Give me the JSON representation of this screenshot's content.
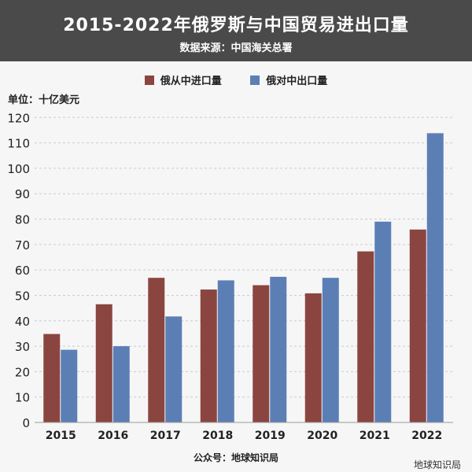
{
  "chart_data": {
    "type": "bar",
    "title": "2015-2022年俄罗斯与中国贸易进出口量",
    "subtitle": "数据来源：中国海关总署",
    "ylabel": "单位：十亿美元",
    "ylim": [
      0,
      120
    ],
    "yticks": [
      0,
      10,
      20,
      30,
      40,
      50,
      60,
      70,
      80,
      90,
      100,
      110,
      120
    ],
    "categories": [
      "2015",
      "2016",
      "2017",
      "2018",
      "2019",
      "2020",
      "2021",
      "2022"
    ],
    "series": [
      {
        "name": "俄从中进口量",
        "color": "#8b4540",
        "values": [
          34.8,
          46.5,
          56.9,
          52.3,
          54.0,
          50.8,
          67.3,
          75.9
        ]
      },
      {
        "name": "俄对中出口量",
        "color": "#5b7fb5",
        "values": [
          28.6,
          30.0,
          41.7,
          55.9,
          57.3,
          56.9,
          79.0,
          113.8
        ]
      }
    ],
    "grid": true,
    "legend": "top-center"
  },
  "footer": "公众号：地球知识局",
  "watermark": "地球知识局"
}
